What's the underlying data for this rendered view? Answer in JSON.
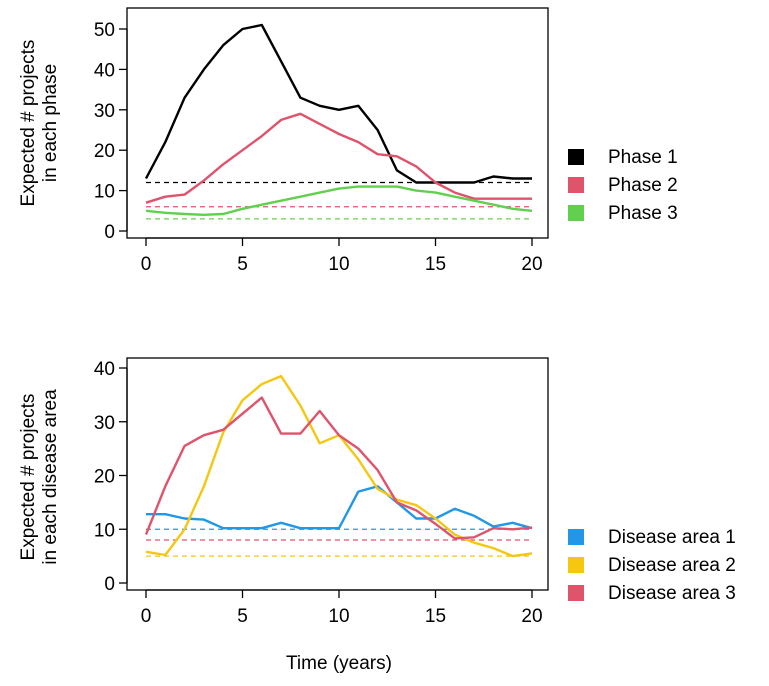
{
  "chart_data": [
    {
      "type": "line",
      "title": "",
      "ylabel_lines": [
        "Expected # projects",
        "in each phase"
      ],
      "xlabel": "",
      "xlim": [
        0,
        20
      ],
      "ylim": [
        0,
        52
      ],
      "xticks": [
        0,
        5,
        10,
        15,
        20
      ],
      "yticks": [
        0,
        10,
        20,
        30,
        40,
        50
      ],
      "legend_position": "right",
      "series": [
        {
          "name": "Phase 1",
          "color": "#000000",
          "x": [
            0,
            1,
            2,
            3,
            4,
            5,
            5.5,
            6,
            7,
            8,
            9,
            10,
            11,
            12,
            13,
            14,
            15,
            16,
            17,
            18,
            19,
            20
          ],
          "y": [
            13,
            22,
            33,
            40,
            46,
            50,
            50.5,
            51,
            42,
            33,
            31,
            30,
            31,
            25,
            15,
            12,
            12,
            12,
            12,
            13.5,
            13,
            13
          ]
        },
        {
          "name": "Phase 2",
          "color": "#DF536B",
          "x": [
            0,
            1,
            2,
            3,
            4,
            5,
            6,
            7,
            8,
            9,
            10,
            11,
            12,
            13,
            14,
            15,
            16,
            17,
            18,
            19,
            20
          ],
          "y": [
            7,
            8.5,
            9,
            12.5,
            16.5,
            20,
            23.5,
            27.5,
            29,
            26.5,
            24,
            22,
            19,
            18.5,
            16,
            12,
            9.5,
            8,
            8,
            8,
            8
          ]
        },
        {
          "name": "Phase 3",
          "color": "#61D04F",
          "x": [
            0,
            1,
            2,
            3,
            4,
            5,
            6,
            7,
            8,
            9,
            10,
            11,
            12,
            13,
            14,
            15,
            16,
            17,
            18,
            19,
            20
          ],
          "y": [
            5,
            4.5,
            4.2,
            4,
            4.2,
            5.5,
            6.5,
            7.5,
            8.5,
            9.5,
            10.5,
            11,
            11,
            11,
            10,
            9.5,
            8.5,
            7.5,
            6.5,
            5.5,
            5
          ]
        }
      ],
      "reference_lines": [
        {
          "color": "#000000",
          "y": 12
        },
        {
          "color": "#DF536B",
          "y": 6
        },
        {
          "color": "#61D04F",
          "y": 3
        }
      ]
    },
    {
      "type": "line",
      "title": "",
      "ylabel_lines": [
        "Expected # projects",
        "in each disease area"
      ],
      "xlabel": "Time (years)",
      "xlim": [
        0,
        20
      ],
      "ylim": [
        0,
        41
      ],
      "xticks": [
        0,
        5,
        10,
        15,
        20
      ],
      "yticks": [
        0,
        10,
        20,
        30,
        40
      ],
      "legend_position": "right",
      "series": [
        {
          "name": "Disease area 1",
          "color": "#2297E6",
          "x": [
            0,
            1,
            2,
            3,
            4,
            5,
            6,
            7,
            8,
            9,
            10,
            11,
            12,
            13,
            14,
            15,
            16,
            17,
            18,
            19,
            20
          ],
          "y": [
            12.8,
            12.8,
            12,
            11.8,
            10.2,
            10.2,
            10.2,
            11.2,
            10.2,
            10.2,
            10.2,
            17,
            18,
            15,
            12,
            12,
            13.8,
            12.5,
            10.5,
            11.2,
            10.2
          ]
        },
        {
          "name": "Disease area 2",
          "color": "#F5C710",
          "x": [
            0,
            1,
            2,
            3,
            4,
            5,
            6,
            7,
            8,
            9,
            10,
            11,
            12,
            13,
            14,
            15,
            16,
            17,
            18,
            19,
            20
          ],
          "y": [
            5.8,
            5.2,
            10,
            18,
            28,
            34,
            37,
            38.5,
            33,
            26,
            27.5,
            23,
            17.5,
            15.5,
            14.5,
            12,
            9,
            7.5,
            6.5,
            5,
            5.5
          ]
        },
        {
          "name": "Disease area 3",
          "color": "#DF536B",
          "x": [
            0,
            1,
            2,
            3,
            4,
            5,
            6,
            7,
            8,
            9,
            10,
            11,
            12,
            13,
            14,
            15,
            16,
            17,
            18,
            19,
            20
          ],
          "y": [
            9,
            18,
            25.5,
            27.5,
            28.5,
            31.5,
            34.5,
            27.8,
            27.8,
            32,
            27.5,
            25,
            21,
            15,
            13.5,
            11,
            8.3,
            8.5,
            10.2,
            10,
            10.3
          ]
        }
      ],
      "reference_lines": [
        {
          "color": "#2297E6",
          "y": 10
        },
        {
          "color": "#DF536B",
          "y": 8
        },
        {
          "color": "#F5C710",
          "y": 5
        }
      ]
    }
  ]
}
